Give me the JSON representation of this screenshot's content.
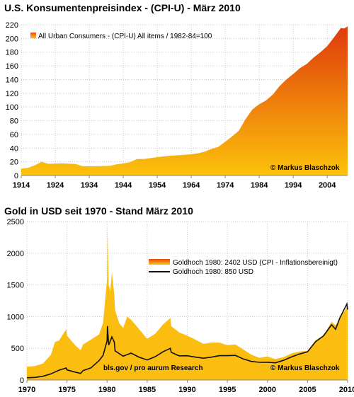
{
  "colors": {
    "cpi_top": "#e03a0c",
    "cpi_bottom": "#fcc20c",
    "gold_fill": "#fbbd10",
    "gold_line": "#111111"
  },
  "chart_data": [
    {
      "type": "area",
      "title": "U.S. Konsumentenpreisindex - (CPI-U) -  März 2010",
      "legend": "All Urban Consumers - (CPI-U) All items / 1982-84=100",
      "legend_position": "top-left",
      "credit": "© Markus Blaschzok",
      "xlim": [
        1914,
        2010
      ],
      "ylim": [
        0,
        220
      ],
      "x_ticks": [
        "1914",
        "1924",
        "1934",
        "1944",
        "1954",
        "1964",
        "1974",
        "1984",
        "1994",
        "2004"
      ],
      "y_ticks": [
        "0",
        "20",
        "40",
        "60",
        "80",
        "100",
        "120",
        "140",
        "160",
        "180",
        "200",
        "220"
      ],
      "grid": true,
      "series": [
        {
          "name": "All Urban Consumers - (CPI-U) All items / 1982-84=100",
          "x": [
            1914,
            1916,
            1918,
            1920,
            1922,
            1926,
            1930,
            1932,
            1934,
            1940,
            1942,
            1944,
            1946,
            1948,
            1950,
            1954,
            1958,
            1962,
            1964,
            1966,
            1968,
            1970,
            1972,
            1974,
            1976,
            1978,
            1980,
            1982,
            1984,
            1986,
            1988,
            1990,
            1992,
            1994,
            1996,
            1998,
            2000,
            2002,
            2004,
            2006,
            2008,
            2009,
            2010
          ],
          "y": [
            10,
            11,
            15,
            20,
            17,
            17.7,
            16.7,
            13.7,
            13.4,
            14,
            16.3,
            17.6,
            19.5,
            24.1,
            24.1,
            26.9,
            28.9,
            30.2,
            31,
            32.4,
            34.8,
            38.8,
            41.8,
            49.3,
            56.9,
            65.2,
            82.4,
            96.5,
            103.9,
            109.6,
            118.3,
            130.7,
            140.3,
            148.2,
            156.9,
            163,
            172.2,
            179.9,
            188.9,
            201.6,
            215.3,
            214.5,
            217.6
          ]
        }
      ]
    },
    {
      "type": "area",
      "title": "Gold in USD seit 1970 - Stand März 2010",
      "source": "bls.gov / pro aurum Research",
      "credit": "© Markus Blaschzok",
      "legend_position": "center-right",
      "xlim": [
        1970,
        2010
      ],
      "ylim": [
        0,
        2500
      ],
      "x_ticks": [
        "1970",
        "1975",
        "1980",
        "1985",
        "1990",
        "1995",
        "2000",
        "2005",
        "2010"
      ],
      "y_ticks": [
        "0",
        "500",
        "1000",
        "1500",
        "2000",
        "2500"
      ],
      "grid": true,
      "series": [
        {
          "name": "Goldhoch 1980: 2402 USD (CPI - Inflationsbereinigt)",
          "style": "area",
          "x": [
            1970,
            1971,
            1972,
            1973,
            1973.5,
            1974,
            1974.9,
            1975,
            1976,
            1976.7,
            1977,
            1978,
            1979,
            1979.5,
            1980,
            1980.05,
            1980.2,
            1980.4,
            1980.6,
            1980.9,
            1981,
            1981.5,
            1982,
            1982.5,
            1983,
            1984,
            1985,
            1986,
            1987,
            1987.9,
            1988,
            1989,
            1990,
            1991,
            1992,
            1993,
            1994,
            1995,
            1996,
            1997,
            1998,
            1999,
            2000,
            2001,
            2002,
            2003,
            2004,
            2005,
            2006,
            2007,
            2008,
            2008.5,
            2009,
            2009.9,
            2010
          ],
          "y": [
            210,
            220,
            260,
            400,
            600,
            620,
            800,
            700,
            550,
            470,
            560,
            640,
            720,
            900,
            1600,
            2402,
            1500,
            1400,
            1700,
            1350,
            1100,
            900,
            820,
            1000,
            950,
            800,
            650,
            730,
            880,
            980,
            850,
            750,
            700,
            640,
            570,
            590,
            590,
            550,
            560,
            480,
            400,
            350,
            370,
            330,
            360,
            420,
            450,
            460,
            630,
            700,
            920,
            860,
            970,
            1150,
            1130
          ]
        },
        {
          "name": "Goldhoch 1980:  850 USD",
          "style": "line",
          "x": [
            1970,
            1971,
            1972,
            1973,
            1974,
            1974.9,
            1975,
            1976,
            1976.7,
            1977,
            1978,
            1979,
            1979.5,
            1980,
            1980.05,
            1980.2,
            1980.6,
            1980.9,
            1981,
            1982,
            1983,
            1984,
            1985,
            1986,
            1987,
            1987.9,
            1988,
            1989,
            1990,
            1991,
            1992,
            1993,
            1994,
            1995,
            1996,
            1997,
            1998,
            1999,
            2000,
            2001,
            2002,
            2003,
            2004,
            2005,
            2006,
            2007,
            2008,
            2008.5,
            2009,
            2009.9,
            2010
          ],
          "y": [
            36,
            41,
            59,
            97,
            155,
            190,
            160,
            125,
            105,
            148,
            193,
            306,
            390,
            620,
            850,
            550,
            680,
            600,
            460,
            376,
            424,
            360,
            317,
            368,
            447,
            500,
            437,
            381,
            383,
            362,
            344,
            360,
            384,
            384,
            388,
            331,
            294,
            279,
            280,
            271,
            310,
            364,
            410,
            445,
            604,
            697,
            872,
            800,
            972,
            1200,
            1110
          ]
        }
      ]
    }
  ]
}
